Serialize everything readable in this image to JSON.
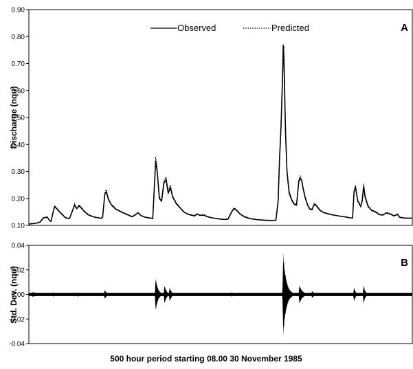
{
  "chart_data": [
    {
      "panel": "A",
      "type": "line",
      "ylabel": "Discharge (nqu)",
      "ylim": [
        0.1,
        0.9
      ],
      "yticks": [
        "0.10",
        "0.20",
        "0.30",
        "0.40",
        "0.50",
        "0.60",
        "0.70",
        "0.80",
        "0.90"
      ],
      "legend": {
        "placement": "top-center"
      },
      "x_range": [
        0,
        500
      ],
      "series": [
        {
          "name": "Observed",
          "style": "solid",
          "color": "#000000",
          "points": [
            [
              0,
              0.105
            ],
            [
              10,
              0.108
            ],
            [
              15,
              0.112
            ],
            [
              20,
              0.128
            ],
            [
              25,
              0.13
            ],
            [
              28,
              0.118
            ],
            [
              30,
              0.115
            ],
            [
              33,
              0.15
            ],
            [
              35,
              0.17
            ],
            [
              40,
              0.155
            ],
            [
              45,
              0.14
            ],
            [
              50,
              0.128
            ],
            [
              55,
              0.125
            ],
            [
              60,
              0.16
            ],
            [
              62,
              0.175
            ],
            [
              65,
              0.162
            ],
            [
              68,
              0.172
            ],
            [
              70,
              0.168
            ],
            [
              75,
              0.152
            ],
            [
              80,
              0.14
            ],
            [
              85,
              0.134
            ],
            [
              90,
              0.13
            ],
            [
              95,
              0.128
            ],
            [
              98,
              0.126
            ],
            [
              100,
              0.13
            ],
            [
              103,
              0.215
            ],
            [
              105,
              0.225
            ],
            [
              108,
              0.195
            ],
            [
              112,
              0.175
            ],
            [
              118,
              0.16
            ],
            [
              125,
              0.15
            ],
            [
              135,
              0.138
            ],
            [
              140,
              0.132
            ],
            [
              145,
              0.14
            ],
            [
              148,
              0.147
            ],
            [
              152,
              0.136
            ],
            [
              158,
              0.13
            ],
            [
              165,
              0.127
            ],
            [
              168,
              0.125
            ],
            [
              172,
              0.34
            ],
            [
              174,
              0.3
            ],
            [
              177,
              0.2
            ],
            [
              180,
              0.19
            ],
            [
              183,
              0.255
            ],
            [
              186,
              0.27
            ],
            [
              189,
              0.22
            ],
            [
              192,
              0.24
            ],
            [
              195,
              0.205
            ],
            [
              200,
              0.18
            ],
            [
              205,
              0.165
            ],
            [
              210,
              0.15
            ],
            [
              215,
              0.142
            ],
            [
              220,
              0.138
            ],
            [
              225,
              0.135
            ],
            [
              228,
              0.142
            ],
            [
              232,
              0.137
            ],
            [
              238,
              0.138
            ],
            [
              240,
              0.134
            ],
            [
              245,
              0.13
            ],
            [
              250,
              0.127
            ],
            [
              255,
              0.125
            ],
            [
              260,
              0.123
            ],
            [
              265,
              0.122
            ],
            [
              270,
              0.123
            ],
            [
              275,
              0.15
            ],
            [
              278,
              0.162
            ],
            [
              282,
              0.155
            ],
            [
              286,
              0.143
            ],
            [
              292,
              0.132
            ],
            [
              300,
              0.125
            ],
            [
              310,
              0.121
            ],
            [
              320,
              0.119
            ],
            [
              330,
              0.118
            ],
            [
              335,
              0.119
            ],
            [
              338,
              0.19
            ],
            [
              340,
              0.35
            ],
            [
              342,
              0.47
            ],
            [
              344,
              0.65
            ],
            [
              345,
              0.77
            ],
            [
              346,
              0.7
            ],
            [
              348,
              0.45
            ],
            [
              350,
              0.3
            ],
            [
              353,
              0.22
            ],
            [
              357,
              0.19
            ],
            [
              360,
              0.178
            ],
            [
              363,
              0.175
            ],
            [
              366,
              0.262
            ],
            [
              368,
              0.275
            ],
            [
              370,
              0.265
            ],
            [
              372,
              0.235
            ],
            [
              375,
              0.2
            ],
            [
              378,
              0.175
            ],
            [
              381,
              0.16
            ],
            [
              384,
              0.158
            ],
            [
              387,
              0.178
            ],
            [
              390,
              0.172
            ],
            [
              395,
              0.155
            ],
            [
              400,
              0.147
            ],
            [
              410,
              0.14
            ],
            [
              420,
              0.135
            ],
            [
              430,
              0.131
            ],
            [
              435,
              0.128
            ],
            [
              439,
              0.127
            ],
            [
              441,
              0.225
            ],
            [
              443,
              0.24
            ],
            [
              446,
              0.19
            ],
            [
              450,
              0.17
            ],
            [
              452,
              0.19
            ],
            [
              454,
              0.245
            ],
            [
              456,
              0.205
            ],
            [
              460,
              0.17
            ],
            [
              465,
              0.155
            ],
            [
              468,
              0.152
            ],
            [
              471,
              0.148
            ],
            [
              475,
              0.14
            ],
            [
              480,
              0.138
            ],
            [
              485,
              0.146
            ],
            [
              490,
              0.142
            ],
            [
              495,
              0.135
            ],
            [
              500,
              0.14
            ],
            [
              503,
              0.13
            ],
            [
              510,
              0.127
            ],
            [
              520,
              0.127
            ]
          ]
        },
        {
          "name": "Predicted",
          "style": "dotted",
          "color": "#000000",
          "points": [
            [
              0,
              0.106
            ],
            [
              10,
              0.109
            ],
            [
              15,
              0.114
            ],
            [
              20,
              0.13
            ],
            [
              25,
              0.132
            ],
            [
              28,
              0.12
            ],
            [
              30,
              0.116
            ],
            [
              33,
              0.152
            ],
            [
              35,
              0.173
            ],
            [
              40,
              0.158
            ],
            [
              45,
              0.142
            ],
            [
              50,
              0.13
            ],
            [
              55,
              0.126
            ],
            [
              60,
              0.163
            ],
            [
              62,
              0.18
            ],
            [
              65,
              0.166
            ],
            [
              68,
              0.177
            ],
            [
              70,
              0.171
            ],
            [
              75,
              0.155
            ],
            [
              80,
              0.142
            ],
            [
              85,
              0.136
            ],
            [
              90,
              0.131
            ],
            [
              95,
              0.129
            ],
            [
              98,
              0.127
            ],
            [
              100,
              0.132
            ],
            [
              103,
              0.222
            ],
            [
              105,
              0.233
            ],
            [
              108,
              0.2
            ],
            [
              112,
              0.179
            ],
            [
              118,
              0.163
            ],
            [
              125,
              0.152
            ],
            [
              135,
              0.14
            ],
            [
              140,
              0.134
            ],
            [
              145,
              0.142
            ],
            [
              148,
              0.149
            ],
            [
              152,
              0.138
            ],
            [
              158,
              0.131
            ],
            [
              165,
              0.128
            ],
            [
              168,
              0.126
            ],
            [
              172,
              0.355
            ],
            [
              174,
              0.312
            ],
            [
              177,
              0.206
            ],
            [
              180,
              0.195
            ],
            [
              183,
              0.265
            ],
            [
              186,
              0.28
            ],
            [
              189,
              0.228
            ],
            [
              192,
              0.25
            ],
            [
              195,
              0.21
            ],
            [
              200,
              0.184
            ],
            [
              205,
              0.168
            ],
            [
              210,
              0.152
            ],
            [
              215,
              0.144
            ],
            [
              220,
              0.14
            ],
            [
              225,
              0.137
            ],
            [
              228,
              0.144
            ],
            [
              232,
              0.139
            ],
            [
              238,
              0.14
            ],
            [
              240,
              0.136
            ],
            [
              245,
              0.131
            ],
            [
              250,
              0.128
            ],
            [
              255,
              0.126
            ],
            [
              260,
              0.124
            ],
            [
              265,
              0.123
            ],
            [
              270,
              0.124
            ],
            [
              275,
              0.153
            ],
            [
              278,
              0.166
            ],
            [
              282,
              0.158
            ],
            [
              286,
              0.145
            ],
            [
              292,
              0.134
            ],
            [
              300,
              0.126
            ],
            [
              310,
              0.122
            ],
            [
              320,
              0.12
            ],
            [
              330,
              0.119
            ],
            [
              335,
              0.12
            ],
            [
              338,
              0.182
            ],
            [
              340,
              0.335
            ],
            [
              342,
              0.455
            ],
            [
              344,
              0.63
            ],
            [
              345,
              0.755
            ],
            [
              346,
              0.765
            ],
            [
              348,
              0.47
            ],
            [
              350,
              0.31
            ],
            [
              353,
              0.228
            ],
            [
              357,
              0.195
            ],
            [
              360,
              0.182
            ],
            [
              363,
              0.178
            ],
            [
              366,
              0.27
            ],
            [
              368,
              0.285
            ],
            [
              370,
              0.272
            ],
            [
              372,
              0.242
            ],
            [
              375,
              0.205
            ],
            [
              378,
              0.179
            ],
            [
              381,
              0.163
            ],
            [
              384,
              0.161
            ],
            [
              387,
              0.182
            ],
            [
              390,
              0.176
            ],
            [
              395,
              0.158
            ],
            [
              400,
              0.149
            ],
            [
              410,
              0.141
            ],
            [
              420,
              0.136
            ],
            [
              430,
              0.132
            ],
            [
              435,
              0.129
            ],
            [
              439,
              0.128
            ],
            [
              441,
              0.233
            ],
            [
              443,
              0.25
            ],
            [
              446,
              0.196
            ],
            [
              450,
              0.174
            ],
            [
              452,
              0.196
            ],
            [
              454,
              0.255
            ],
            [
              456,
              0.212
            ],
            [
              460,
              0.174
            ],
            [
              465,
              0.158
            ],
            [
              468,
              0.155
            ],
            [
              471,
              0.151
            ],
            [
              475,
              0.142
            ],
            [
              480,
              0.14
            ],
            [
              485,
              0.149
            ],
            [
              490,
              0.145
            ],
            [
              495,
              0.137
            ],
            [
              500,
              0.143
            ],
            [
              503,
              0.131
            ],
            [
              510,
              0.128
            ],
            [
              520,
              0.128
            ]
          ]
        }
      ]
    },
    {
      "panel": "B",
      "type": "area",
      "ylabel": "Std. Dev. (nqu)",
      "ylim": [
        -0.04,
        0.04
      ],
      "yticks": [
        "-0.04",
        "-0.02",
        "0.00",
        "0.02",
        "0.04"
      ],
      "x_range": [
        0,
        500
      ],
      "baseline_halfwidth": 0.0013,
      "bursts": [
        {
          "center": 5,
          "amplitude": 0.002,
          "width": 30
        },
        {
          "center": 33,
          "amplitude": 0.002,
          "width": 3
        },
        {
          "center": 60,
          "amplitude": 0.002,
          "width": 3
        },
        {
          "center": 67,
          "amplitude": 0.002,
          "width": 3
        },
        {
          "center": 103,
          "amplitude": 0.004,
          "width": 6
        },
        {
          "center": 172,
          "amplitude": 0.014,
          "width": 7
        },
        {
          "center": 184,
          "amplitude": 0.008,
          "width": 6
        },
        {
          "center": 191,
          "amplitude": 0.006,
          "width": 6
        },
        {
          "center": 275,
          "amplitude": 0.002,
          "width": 4
        },
        {
          "center": 345,
          "amplitude": 0.035,
          "width": 9
        },
        {
          "center": 367,
          "amplitude": 0.008,
          "width": 9
        },
        {
          "center": 384,
          "amplitude": 0.003,
          "width": 8
        },
        {
          "center": 441,
          "amplitude": 0.006,
          "width": 5
        },
        {
          "center": 454,
          "amplitude": 0.008,
          "width": 5
        }
      ]
    }
  ],
  "xlabel": "500 hour period starting 08.00 30 November 1985"
}
